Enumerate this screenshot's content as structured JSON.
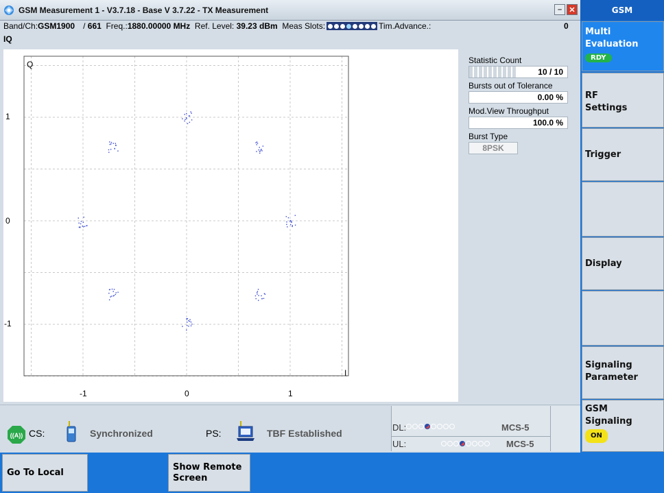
{
  "window": {
    "title": "GSM Measurement 1 - V3.7.18 - Base V 3.7.22 - TX Measurement"
  },
  "info": {
    "band_label": "Band/Ch:",
    "band_value": "GSM1900",
    "channel_sep": "/",
    "channel_value": "661",
    "freq_label": "Freq.:",
    "freq_value": "1880.00000",
    "freq_unit": "MHz",
    "ref_label": "Ref. Level:",
    "ref_value": "39.23",
    "ref_unit": "dBm",
    "slots_label": "Meas Slots:",
    "timadv_label": "Tim.Advance.:",
    "timadv_value": "0",
    "view_label": "IQ"
  },
  "plot": {
    "q_label": "Q",
    "i_label": "I",
    "x_ticks": [
      "-1",
      "0",
      "1"
    ],
    "y_ticks": [
      "1",
      "0",
      "-1"
    ]
  },
  "stats": {
    "count_label": "Statistic Count",
    "count_value": "10 / 10",
    "bursts_label": "Bursts out of Tolerance",
    "bursts_value": "0.00",
    "bursts_unit": "%",
    "throughput_label": "Mod.View Throughput",
    "throughput_value": "100.0",
    "throughput_unit": "%",
    "burst_type_label": "Burst Type",
    "burst_type_value": "8PSK"
  },
  "status": {
    "cs_label": "CS:",
    "cs_state": "Synchronized",
    "ps_label": "PS:",
    "ps_state": "TBF Established",
    "dl_label": "DL:",
    "dl_mcs": "MCS-5",
    "ul_label": "UL:",
    "ul_mcs": "MCS-5"
  },
  "softkeys": {
    "header": "GSM",
    "multi_eval": "Multi Evaluation",
    "multi_eval_badge": "RDY",
    "rf_settings": "RF Settings",
    "trigger": "Trigger",
    "display": "Display",
    "signaling_param": "Signaling Parameter",
    "gsm_signaling": "GSM Signaling",
    "gsm_signaling_badge": "ON"
  },
  "bottom": {
    "go_to_local": "Go To Local",
    "show_remote": "Show Remote Screen"
  },
  "colors": {
    "accent": "#1a76d9",
    "active_key": "#1f86ee",
    "rdy": "#23b34a",
    "on": "#f3e218",
    "iq_points": "#3a4ad0"
  }
}
